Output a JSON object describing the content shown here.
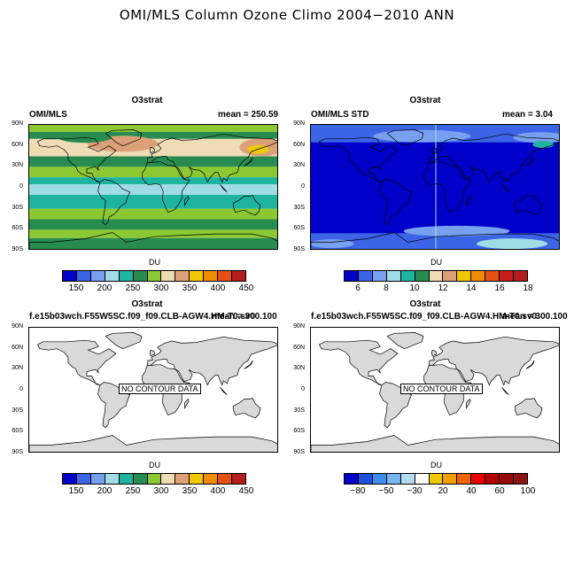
{
  "figure": {
    "title": "OMI/MLS Column Ozone Climo 2004−2010 ANN"
  },
  "latitude_labels": [
    "90N",
    "60N",
    "30N",
    "0",
    "30S",
    "60S",
    "90S"
  ],
  "colorbar_unit": "DU",
  "no_data_text": "NO CONTOUR DATA",
  "panels": {
    "tl": {
      "title": "O3strat",
      "left": "OMI/MLS",
      "right": "mean = 250.59",
      "colors": [
        "#0000c8",
        "#3c64e6",
        "#78a0f0",
        "#a0dce6",
        "#1eb4a0",
        "#288c50",
        "#8cc832",
        "#f0dcb4",
        "#dca078",
        "#f0c800",
        "#f08c00",
        "#e65014",
        "#b41e1e"
      ],
      "labels": [
        "150",
        "200",
        "250",
        "300",
        "350",
        "400",
        "450"
      ]
    },
    "tr": {
      "title": "O3strat",
      "left": "OMI/MLS STD",
      "right": "mean =   3.04",
      "colors": [
        "#0000c8",
        "#3c64e6",
        "#78a0f0",
        "#a0dce6",
        "#1eb4a0",
        "#288c50",
        "#f0dcb4",
        "#dca078",
        "#f0c800",
        "#f08c00",
        "#e65014",
        "#c81e1e",
        "#b41e1e"
      ],
      "labels": [
        "6",
        "8",
        "10",
        "12",
        "14",
        "16",
        "18"
      ]
    },
    "bl": {
      "title": "O3strat",
      "left": "f.e15b03wch.F55W5SC.f09_f09.CLB-AGW4.HM-T0.sv0",
      "right": "mean = 300.100",
      "colors": [
        "#0000c8",
        "#3c64e6",
        "#78a0f0",
        "#a0dce6",
        "#1eb4a0",
        "#288c50",
        "#8cc832",
        "#f0dcb4",
        "#dca078",
        "#f0c800",
        "#f08c00",
        "#e65014",
        "#b41e1e"
      ],
      "labels": [
        "150",
        "200",
        "250",
        "300",
        "350",
        "400",
        "450"
      ]
    },
    "br": {
      "title": "O3strat",
      "left": "f.e15b03wch.F55W5SC.f09_f09.CLB-AGW4.HM-T0.sv0",
      "right": "mean = 300.100",
      "colors": [
        "#0000c8",
        "#1e50dc",
        "#3c8cf0",
        "#78b4f0",
        "#b4dcf0",
        "#ffffff",
        "#f0c800",
        "#f0a000",
        "#f06400",
        "#e60000",
        "#b40000",
        "#9a0a0a",
        "#8c1414"
      ],
      "labels": [
        "−80",
        "−50",
        "−30",
        "20",
        "40",
        "60",
        "100"
      ]
    }
  }
}
